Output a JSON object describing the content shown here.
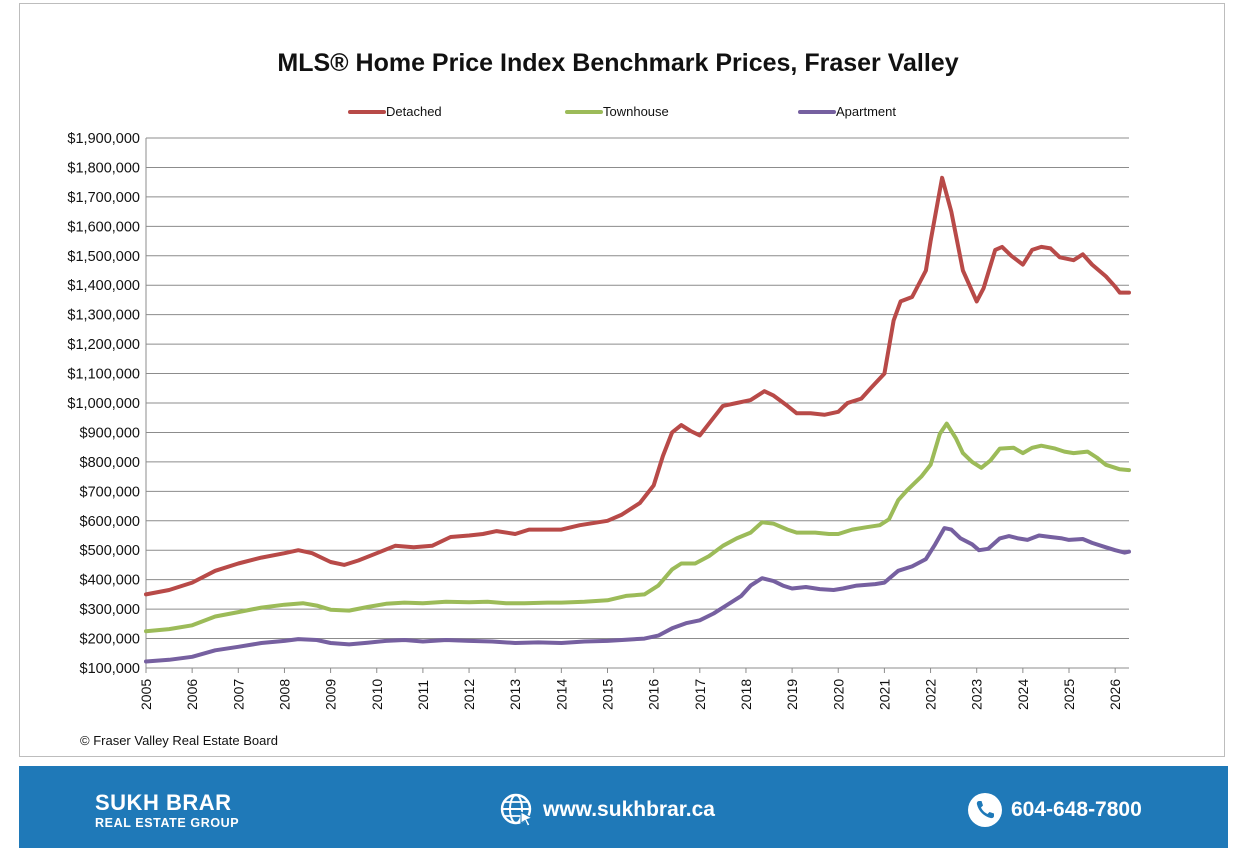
{
  "chart_data": {
    "type": "line",
    "title": "MLS® Home Price Index Benchmark Prices, Fraser Valley",
    "xlabel": "",
    "ylabel": "",
    "legend_position": "top",
    "grid": true,
    "xlim": [
      2005.0,
      2026.3
    ],
    "ylim": [
      100000,
      1900000
    ],
    "x_ticks": [
      "2005",
      "2006",
      "2007",
      "2008",
      "2009",
      "2010",
      "2011",
      "2012",
      "2013",
      "2014",
      "2015",
      "2016",
      "2017",
      "2018",
      "2019",
      "2020",
      "2021",
      "2022",
      "2023",
      "2024",
      "2025",
      "2026"
    ],
    "y_ticks": [
      "$100,000",
      "$200,000",
      "$300,000",
      "$400,000",
      "$500,000",
      "$600,000",
      "$700,000",
      "$800,000",
      "$900,000",
      "$1,000,000",
      "$1,100,000",
      "$1,200,000",
      "$1,300,000",
      "$1,400,000",
      "$1,500,000",
      "$1,600,000",
      "$1,700,000",
      "$1,800,000",
      "$1,900,000"
    ],
    "series": [
      {
        "name": "Detached",
        "color": "#b84a48",
        "points": [
          [
            2005.0,
            350000
          ],
          [
            2005.5,
            365000
          ],
          [
            2006.0,
            390000
          ],
          [
            2006.5,
            430000
          ],
          [
            2007.0,
            455000
          ],
          [
            2007.5,
            475000
          ],
          [
            2008.0,
            490000
          ],
          [
            2008.3,
            500000
          ],
          [
            2008.6,
            490000
          ],
          [
            2009.0,
            460000
          ],
          [
            2009.3,
            450000
          ],
          [
            2009.6,
            465000
          ],
          [
            2010.0,
            490000
          ],
          [
            2010.4,
            515000
          ],
          [
            2010.8,
            510000
          ],
          [
            2011.2,
            515000
          ],
          [
            2011.6,
            545000
          ],
          [
            2012.0,
            550000
          ],
          [
            2012.3,
            555000
          ],
          [
            2012.6,
            565000
          ],
          [
            2013.0,
            555000
          ],
          [
            2013.3,
            570000
          ],
          [
            2013.7,
            570000
          ],
          [
            2014.0,
            570000
          ],
          [
            2014.4,
            585000
          ],
          [
            2015.0,
            600000
          ],
          [
            2015.3,
            620000
          ],
          [
            2015.7,
            660000
          ],
          [
            2016.0,
            720000
          ],
          [
            2016.2,
            820000
          ],
          [
            2016.4,
            900000
          ],
          [
            2016.6,
            925000
          ],
          [
            2016.8,
            905000
          ],
          [
            2017.0,
            890000
          ],
          [
            2017.3,
            950000
          ],
          [
            2017.5,
            990000
          ],
          [
            2017.8,
            1000000
          ],
          [
            2018.1,
            1010000
          ],
          [
            2018.4,
            1040000
          ],
          [
            2018.6,
            1025000
          ],
          [
            2018.9,
            990000
          ],
          [
            2019.1,
            965000
          ],
          [
            2019.4,
            965000
          ],
          [
            2019.7,
            960000
          ],
          [
            2020.0,
            970000
          ],
          [
            2020.2,
            1000000
          ],
          [
            2020.5,
            1015000
          ],
          [
            2020.7,
            1050000
          ],
          [
            2021.0,
            1100000
          ],
          [
            2021.2,
            1280000
          ],
          [
            2021.35,
            1345000
          ],
          [
            2021.6,
            1360000
          ],
          [
            2021.9,
            1450000
          ],
          [
            2022.0,
            1550000
          ],
          [
            2022.25,
            1765000
          ],
          [
            2022.45,
            1650000
          ],
          [
            2022.7,
            1450000
          ],
          [
            2023.0,
            1345000
          ],
          [
            2023.15,
            1390000
          ],
          [
            2023.4,
            1520000
          ],
          [
            2023.55,
            1530000
          ],
          [
            2023.75,
            1500000
          ],
          [
            2024.0,
            1470000
          ],
          [
            2024.2,
            1520000
          ],
          [
            2024.4,
            1530000
          ],
          [
            2024.6,
            1525000
          ],
          [
            2024.8,
            1495000
          ],
          [
            2025.1,
            1485000
          ],
          [
            2025.3,
            1505000
          ],
          [
            2025.5,
            1470000
          ],
          [
            2025.8,
            1430000
          ],
          [
            2026.0,
            1395000
          ],
          [
            2026.1,
            1375000
          ],
          [
            2026.3,
            1375000
          ]
        ]
      },
      {
        "name": "Townhouse",
        "color": "#9cbb59",
        "points": [
          [
            2005.0,
            225000
          ],
          [
            2005.5,
            232000
          ],
          [
            2006.0,
            245000
          ],
          [
            2006.5,
            275000
          ],
          [
            2007.0,
            290000
          ],
          [
            2007.5,
            305000
          ],
          [
            2008.0,
            315000
          ],
          [
            2008.4,
            320000
          ],
          [
            2008.7,
            312000
          ],
          [
            2009.0,
            298000
          ],
          [
            2009.4,
            295000
          ],
          [
            2009.8,
            307000
          ],
          [
            2010.2,
            318000
          ],
          [
            2010.6,
            322000
          ],
          [
            2011.0,
            320000
          ],
          [
            2011.5,
            325000
          ],
          [
            2012.0,
            323000
          ],
          [
            2012.4,
            325000
          ],
          [
            2012.8,
            320000
          ],
          [
            2013.2,
            320000
          ],
          [
            2013.7,
            322000
          ],
          [
            2014.0,
            322000
          ],
          [
            2014.5,
            325000
          ],
          [
            2015.0,
            330000
          ],
          [
            2015.4,
            345000
          ],
          [
            2015.8,
            350000
          ],
          [
            2016.1,
            380000
          ],
          [
            2016.4,
            435000
          ],
          [
            2016.6,
            455000
          ],
          [
            2016.9,
            455000
          ],
          [
            2017.2,
            480000
          ],
          [
            2017.5,
            515000
          ],
          [
            2017.8,
            540000
          ],
          [
            2018.1,
            560000
          ],
          [
            2018.35,
            595000
          ],
          [
            2018.6,
            590000
          ],
          [
            2018.9,
            570000
          ],
          [
            2019.1,
            560000
          ],
          [
            2019.5,
            560000
          ],
          [
            2019.8,
            555000
          ],
          [
            2020.0,
            555000
          ],
          [
            2020.3,
            570000
          ],
          [
            2020.6,
            578000
          ],
          [
            2020.9,
            585000
          ],
          [
            2021.1,
            605000
          ],
          [
            2021.3,
            670000
          ],
          [
            2021.5,
            705000
          ],
          [
            2021.8,
            750000
          ],
          [
            2022.0,
            790000
          ],
          [
            2022.2,
            895000
          ],
          [
            2022.35,
            930000
          ],
          [
            2022.55,
            880000
          ],
          [
            2022.7,
            830000
          ],
          [
            2022.9,
            800000
          ],
          [
            2023.1,
            780000
          ],
          [
            2023.3,
            805000
          ],
          [
            2023.5,
            845000
          ],
          [
            2023.8,
            848000
          ],
          [
            2024.0,
            830000
          ],
          [
            2024.2,
            848000
          ],
          [
            2024.4,
            855000
          ],
          [
            2024.7,
            845000
          ],
          [
            2024.9,
            835000
          ],
          [
            2025.1,
            830000
          ],
          [
            2025.4,
            835000
          ],
          [
            2025.6,
            815000
          ],
          [
            2025.8,
            790000
          ],
          [
            2026.0,
            780000
          ],
          [
            2026.1,
            775000
          ],
          [
            2026.3,
            772000
          ]
        ]
      },
      {
        "name": "Apartment",
        "color": "#7660a0",
        "points": [
          [
            2005.0,
            122000
          ],
          [
            2005.5,
            128000
          ],
          [
            2006.0,
            138000
          ],
          [
            2006.5,
            160000
          ],
          [
            2007.0,
            172000
          ],
          [
            2007.5,
            185000
          ],
          [
            2008.0,
            192000
          ],
          [
            2008.3,
            198000
          ],
          [
            2008.7,
            195000
          ],
          [
            2009.0,
            185000
          ],
          [
            2009.4,
            180000
          ],
          [
            2009.8,
            186000
          ],
          [
            2010.2,
            192000
          ],
          [
            2010.6,
            195000
          ],
          [
            2011.0,
            190000
          ],
          [
            2011.5,
            195000
          ],
          [
            2012.0,
            192000
          ],
          [
            2012.5,
            190000
          ],
          [
            2013.0,
            185000
          ],
          [
            2013.5,
            187000
          ],
          [
            2014.0,
            185000
          ],
          [
            2014.5,
            190000
          ],
          [
            2015.0,
            192000
          ],
          [
            2015.4,
            196000
          ],
          [
            2015.8,
            200000
          ],
          [
            2016.1,
            210000
          ],
          [
            2016.4,
            235000
          ],
          [
            2016.7,
            252000
          ],
          [
            2017.0,
            262000
          ],
          [
            2017.3,
            285000
          ],
          [
            2017.6,
            315000
          ],
          [
            2017.9,
            345000
          ],
          [
            2018.1,
            380000
          ],
          [
            2018.35,
            405000
          ],
          [
            2018.6,
            395000
          ],
          [
            2018.8,
            380000
          ],
          [
            2019.0,
            370000
          ],
          [
            2019.3,
            375000
          ],
          [
            2019.6,
            368000
          ],
          [
            2019.9,
            365000
          ],
          [
            2020.1,
            370000
          ],
          [
            2020.4,
            380000
          ],
          [
            2020.8,
            385000
          ],
          [
            2021.0,
            390000
          ],
          [
            2021.3,
            430000
          ],
          [
            2021.6,
            445000
          ],
          [
            2021.9,
            470000
          ],
          [
            2022.1,
            520000
          ],
          [
            2022.3,
            575000
          ],
          [
            2022.45,
            570000
          ],
          [
            2022.65,
            540000
          ],
          [
            2022.9,
            520000
          ],
          [
            2023.05,
            500000
          ],
          [
            2023.25,
            505000
          ],
          [
            2023.5,
            540000
          ],
          [
            2023.7,
            548000
          ],
          [
            2023.9,
            540000
          ],
          [
            2024.1,
            535000
          ],
          [
            2024.35,
            550000
          ],
          [
            2024.6,
            545000
          ],
          [
            2024.85,
            540000
          ],
          [
            2025.0,
            535000
          ],
          [
            2025.3,
            538000
          ],
          [
            2025.5,
            525000
          ],
          [
            2025.8,
            510000
          ],
          [
            2026.0,
            500000
          ],
          [
            2026.2,
            492000
          ],
          [
            2026.3,
            495000
          ]
        ]
      }
    ],
    "source_note": "© Fraser Valley Real Estate Board"
  },
  "footer": {
    "brand_name": "SUKH BRAR",
    "brand_sub": "REAL ESTATE GROUP",
    "website": "www.sukhbrar.ca",
    "phone": "604-648-7800",
    "background_color": "#1f79b8",
    "website_icon": "globe-cursor-icon",
    "phone_icon": "phone-icon"
  }
}
